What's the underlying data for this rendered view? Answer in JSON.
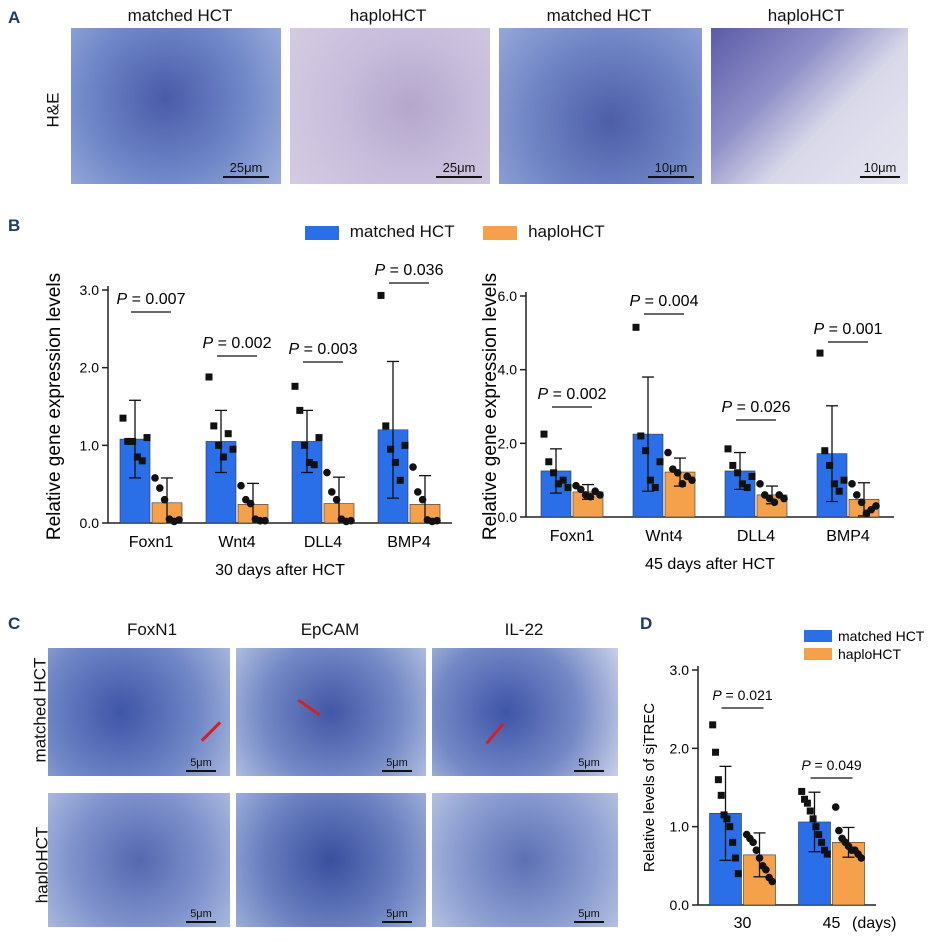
{
  "panelA": {
    "label": "A",
    "row_label": "H&E",
    "titles": [
      "matched HCT",
      "haploHCT",
      "matched HCT",
      "haploHCT"
    ],
    "scales": [
      "25μm",
      "25μm",
      "10μm",
      "10μm"
    ]
  },
  "panelB": {
    "label": "B",
    "legend": {
      "series1": "matched HCT",
      "series2": "haploHCT"
    }
  },
  "panelC": {
    "label": "C",
    "col_titles": [
      "FoxN1",
      "EpCAM",
      "IL-22"
    ],
    "row_titles": [
      "matched HCT",
      "haploHCT"
    ],
    "scale": "5μm"
  },
  "panelD": {
    "label": "D"
  },
  "colors": {
    "matched": "#2b6fe8",
    "haplo": "#f5a04b"
  },
  "chart_data": [
    {
      "id": "B1",
      "type": "bar",
      "title": "",
      "xlabel": "30 days after HCT",
      "ylabel": "Relative gene expression levels",
      "ylim": [
        0,
        3.0
      ],
      "yticks": [
        "0.0",
        "1.0",
        "2.0",
        "3.0"
      ],
      "categories": [
        "Foxn1",
        "Wnt4",
        "DLL4",
        "BMP4"
      ],
      "series": [
        {
          "name": "matched HCT",
          "values": [
            1.08,
            1.05,
            1.05,
            1.2
          ],
          "err": [
            0.5,
            0.4,
            0.4,
            0.88
          ],
          "points": [
            [
              1.35,
              1.05,
              1.05,
              0.85,
              0.8,
              1.1
            ],
            [
              1.88,
              1.25,
              1.0,
              0.85,
              1.15,
              0.95
            ],
            [
              1.76,
              1.45,
              1.0,
              0.78,
              0.75,
              1.1
            ],
            [
              2.93,
              1.25,
              0.95,
              0.78,
              0.55,
              1.0
            ]
          ]
        },
        {
          "name": "haploHCT",
          "values": [
            0.26,
            0.24,
            0.25,
            0.24
          ],
          "err": [
            0.32,
            0.27,
            0.34,
            0.37
          ],
          "points": [
            [
              0.58,
              0.45,
              0.3,
              0.05,
              0.02,
              0.04
            ],
            [
              0.48,
              0.3,
              0.25,
              0.05,
              0.03,
              0.03
            ],
            [
              0.65,
              0.4,
              0.3,
              0.05,
              0.02,
              0.03
            ],
            [
              0.72,
              0.4,
              0.3,
              0.04,
              0.02,
              0.03
            ]
          ]
        }
      ],
      "annotations": [
        "P = 0.007",
        "P = 0.002",
        "P = 0.003",
        "P = 0.036"
      ]
    },
    {
      "id": "B2",
      "type": "bar",
      "title": "",
      "xlabel": "45 days after HCT",
      "ylabel": "Relative gene expression levels",
      "ylim": [
        0,
        6.0
      ],
      "yticks": [
        "0.0",
        "2.0",
        "4.0",
        "6.0"
      ],
      "categories": [
        "Foxn1",
        "Wnt4",
        "DLL4",
        "BMP4"
      ],
      "series": [
        {
          "name": "matched HCT",
          "values": [
            1.25,
            2.25,
            1.25,
            1.72
          ],
          "err": [
            0.6,
            1.55,
            0.5,
            1.3
          ],
          "points": [
            [
              2.25,
              1.5,
              1.2,
              0.9,
              1.0,
              0.8
            ],
            [
              5.15,
              2.2,
              1.8,
              1.0,
              0.8,
              1.5
            ],
            [
              1.85,
              1.4,
              1.2,
              0.9,
              0.8,
              1.1
            ],
            [
              4.45,
              1.8,
              1.4,
              0.9,
              0.7,
              1.0
            ]
          ]
        },
        {
          "name": "haploHCT",
          "values": [
            0.68,
            1.22,
            0.6,
            0.48
          ],
          "err": [
            0.2,
            0.38,
            0.24,
            0.45
          ],
          "points": [
            [
              0.85,
              0.75,
              0.6,
              0.55,
              0.7,
              0.6
            ],
            [
              1.75,
              1.3,
              1.2,
              0.9,
              1.1,
              1.0
            ],
            [
              0.9,
              0.6,
              0.5,
              0.4,
              0.6,
              0.5
            ],
            [
              0.9,
              0.6,
              0.4,
              0.1,
              0.2,
              0.3
            ]
          ]
        }
      ],
      "annotations": [
        "P = 0.002",
        "P = 0.004",
        "P = 0.026",
        "P = 0.001"
      ]
    },
    {
      "id": "D",
      "type": "bar",
      "title": "",
      "xlabel": "(days)",
      "ylabel": "Relative levels of sjTREC",
      "ylim": [
        0,
        3.0
      ],
      "yticks": [
        "0.0",
        "1.0",
        "2.0",
        "3.0"
      ],
      "categories": [
        "30",
        "45"
      ],
      "legend": [
        "matched HCT",
        "haploHCT"
      ],
      "series": [
        {
          "name": "matched HCT",
          "values": [
            1.17,
            1.06
          ],
          "err": [
            0.6,
            0.38
          ],
          "points": [
            [
              2.3,
              1.95,
              1.6,
              1.4,
              1.15,
              1.1,
              1.0,
              0.8,
              0.6,
              0.4
            ],
            [
              1.45,
              1.35,
              1.3,
              1.2,
              1.1,
              1.0,
              0.9,
              0.8,
              0.7,
              0.65
            ]
          ]
        },
        {
          "name": "haploHCT",
          "values": [
            0.64,
            0.8
          ],
          "err": [
            0.28,
            0.19
          ],
          "points": [
            [
              0.9,
              0.85,
              0.8,
              0.7,
              0.6,
              0.5,
              0.45,
              0.35,
              0.3
            ],
            [
              1.25,
              0.95,
              0.85,
              0.8,
              0.75,
              0.7,
              0.7,
              0.65,
              0.6
            ]
          ]
        }
      ],
      "annotations": [
        "P = 0.021",
        "P = 0.049"
      ]
    }
  ]
}
